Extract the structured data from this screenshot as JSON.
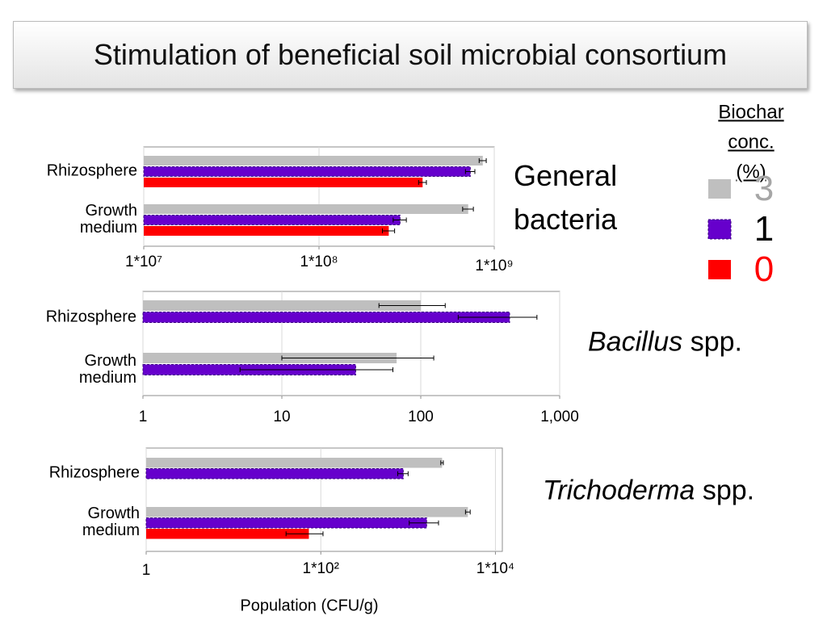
{
  "header": {
    "title": "Stimulation of beneficial soil microbial consortium"
  },
  "legend": {
    "title": "Biochar conc.(%)"
  },
  "chart_data": [
    {
      "type": "bar",
      "orientation": "horizontal",
      "xscale": "log",
      "grid": true,
      "title_lines": [
        "General",
        "bacteria"
      ],
      "categories": [
        "Rhizosphere",
        "Growth medium"
      ],
      "series": [
        {
          "name": "3",
          "color": "#bfbfbf",
          "label_color": "#a6a6a6",
          "values": [
            860000000,
            710000000
          ],
          "errors": [
            40000000,
            50000000
          ]
        },
        {
          "name": "1",
          "color": "#6600cc",
          "label_color": "#000000",
          "values": [
            730000000,
            290000000
          ],
          "errors": [
            45000000,
            25000000
          ]
        },
        {
          "name": "0",
          "color": "#ff0000",
          "label_color": "#ff0000",
          "values": [
            390000000,
            250000000
          ],
          "errors": [
            20000000,
            20000000
          ]
        }
      ],
      "xlim": [
        10000000,
        1000000000
      ],
      "xticks": [
        {
          "value": 10000000,
          "label": "1*10⁷"
        },
        {
          "value": 100000000,
          "label": "1*10⁸"
        },
        {
          "value": 1000000000,
          "label": "1*10⁹"
        }
      ]
    },
    {
      "type": "bar",
      "orientation": "horizontal",
      "xscale": "log",
      "grid": true,
      "title_parts": [
        "Bacillus",
        "spp."
      ],
      "categories": [
        "Rhizosphere",
        "Growth medium"
      ],
      "series": [
        {
          "name": "3",
          "color": "#bfbfbf",
          "values": [
            100,
            67
          ],
          "errors": [
            50,
            57
          ]
        },
        {
          "name": "1",
          "color": "#6600cc",
          "values": [
            436,
            34
          ],
          "errors": [
            250,
            29
          ]
        },
        {
          "name": "0",
          "color": "#ff0000",
          "values": [
            1,
            1
          ],
          "errors": [
            null,
            null
          ]
        }
      ],
      "xlim": [
        1,
        1000
      ],
      "xticks": [
        1,
        10,
        100,
        {
          "value": 1000,
          "label": "1,000"
        }
      ]
    },
    {
      "type": "bar",
      "orientation": "horizontal",
      "xscale": "log",
      "grid": true,
      "title_parts": [
        "Trichoderma",
        "spp."
      ],
      "xlabel": "Population (CFU/g)",
      "categories": [
        "Rhizosphere",
        "Growth medium"
      ],
      "series": [
        {
          "name": "3",
          "color": "#bfbfbf",
          "values": [
            2450,
            4840
          ],
          "errors": [
            80,
            300
          ]
        },
        {
          "name": "1",
          "color": "#6600cc",
          "values": [
            880,
            1630
          ],
          "errors": [
            120,
            600
          ]
        },
        {
          "name": "0",
          "color": "#ff0000",
          "values": [
            1,
            73
          ],
          "errors": [
            null,
            33
          ]
        }
      ],
      "xlim": [
        1,
        12000
      ],
      "xticks": [
        1,
        {
          "value": 100,
          "label": "1*10²"
        },
        {
          "value": 10000,
          "label": "1*10⁴"
        }
      ]
    }
  ]
}
